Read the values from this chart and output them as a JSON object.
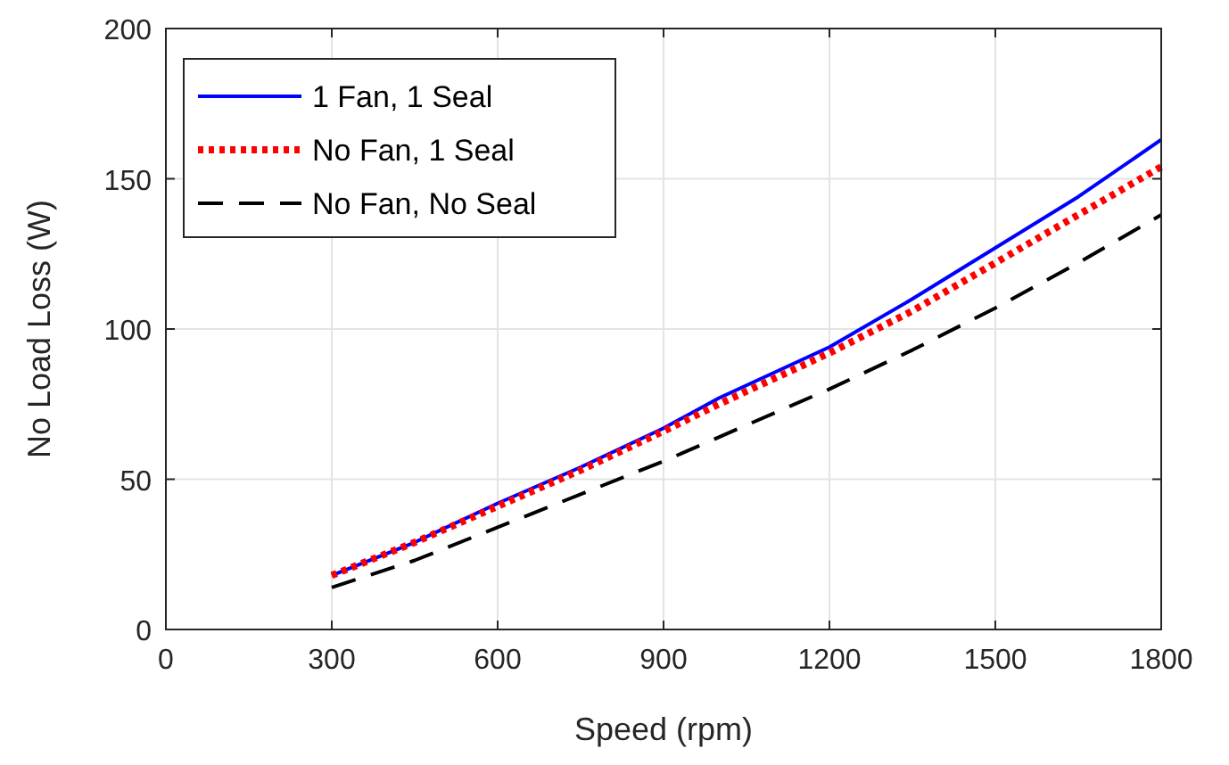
{
  "chart_data": {
    "type": "line",
    "xlabel": "Speed (rpm)",
    "ylabel": "No Load Loss (W)",
    "x": [
      300,
      450,
      600,
      750,
      900,
      1000,
      1200,
      1350,
      1500,
      1650,
      1800
    ],
    "series": [
      {
        "name": "1 Fan, 1 Seal",
        "color": "#0000ff",
        "line_style": "solid",
        "values": [
          18,
          29,
          42,
          54,
          67,
          77,
          94,
          110,
          127,
          144,
          163
        ]
      },
      {
        "name": "No Fan, 1 Seal",
        "color": "#ff0000",
        "line_style": "dotted",
        "values": [
          18,
          29,
          41,
          53,
          66,
          75,
          92,
          106,
          122,
          138,
          154
        ]
      },
      {
        "name": "No Fan, No Seal",
        "color": "#000000",
        "line_style": "dashed",
        "values": [
          14,
          23,
          34,
          45,
          56,
          64,
          80,
          93,
          107,
          122,
          138
        ]
      }
    ],
    "xlim": [
      0,
      1800
    ],
    "xticks": [
      0,
      300,
      600,
      900,
      1200,
      1500,
      1800
    ],
    "ylim": [
      0,
      200
    ],
    "yticks": [
      0,
      50,
      100,
      150,
      200
    ],
    "grid": true,
    "legend": "top left"
  }
}
